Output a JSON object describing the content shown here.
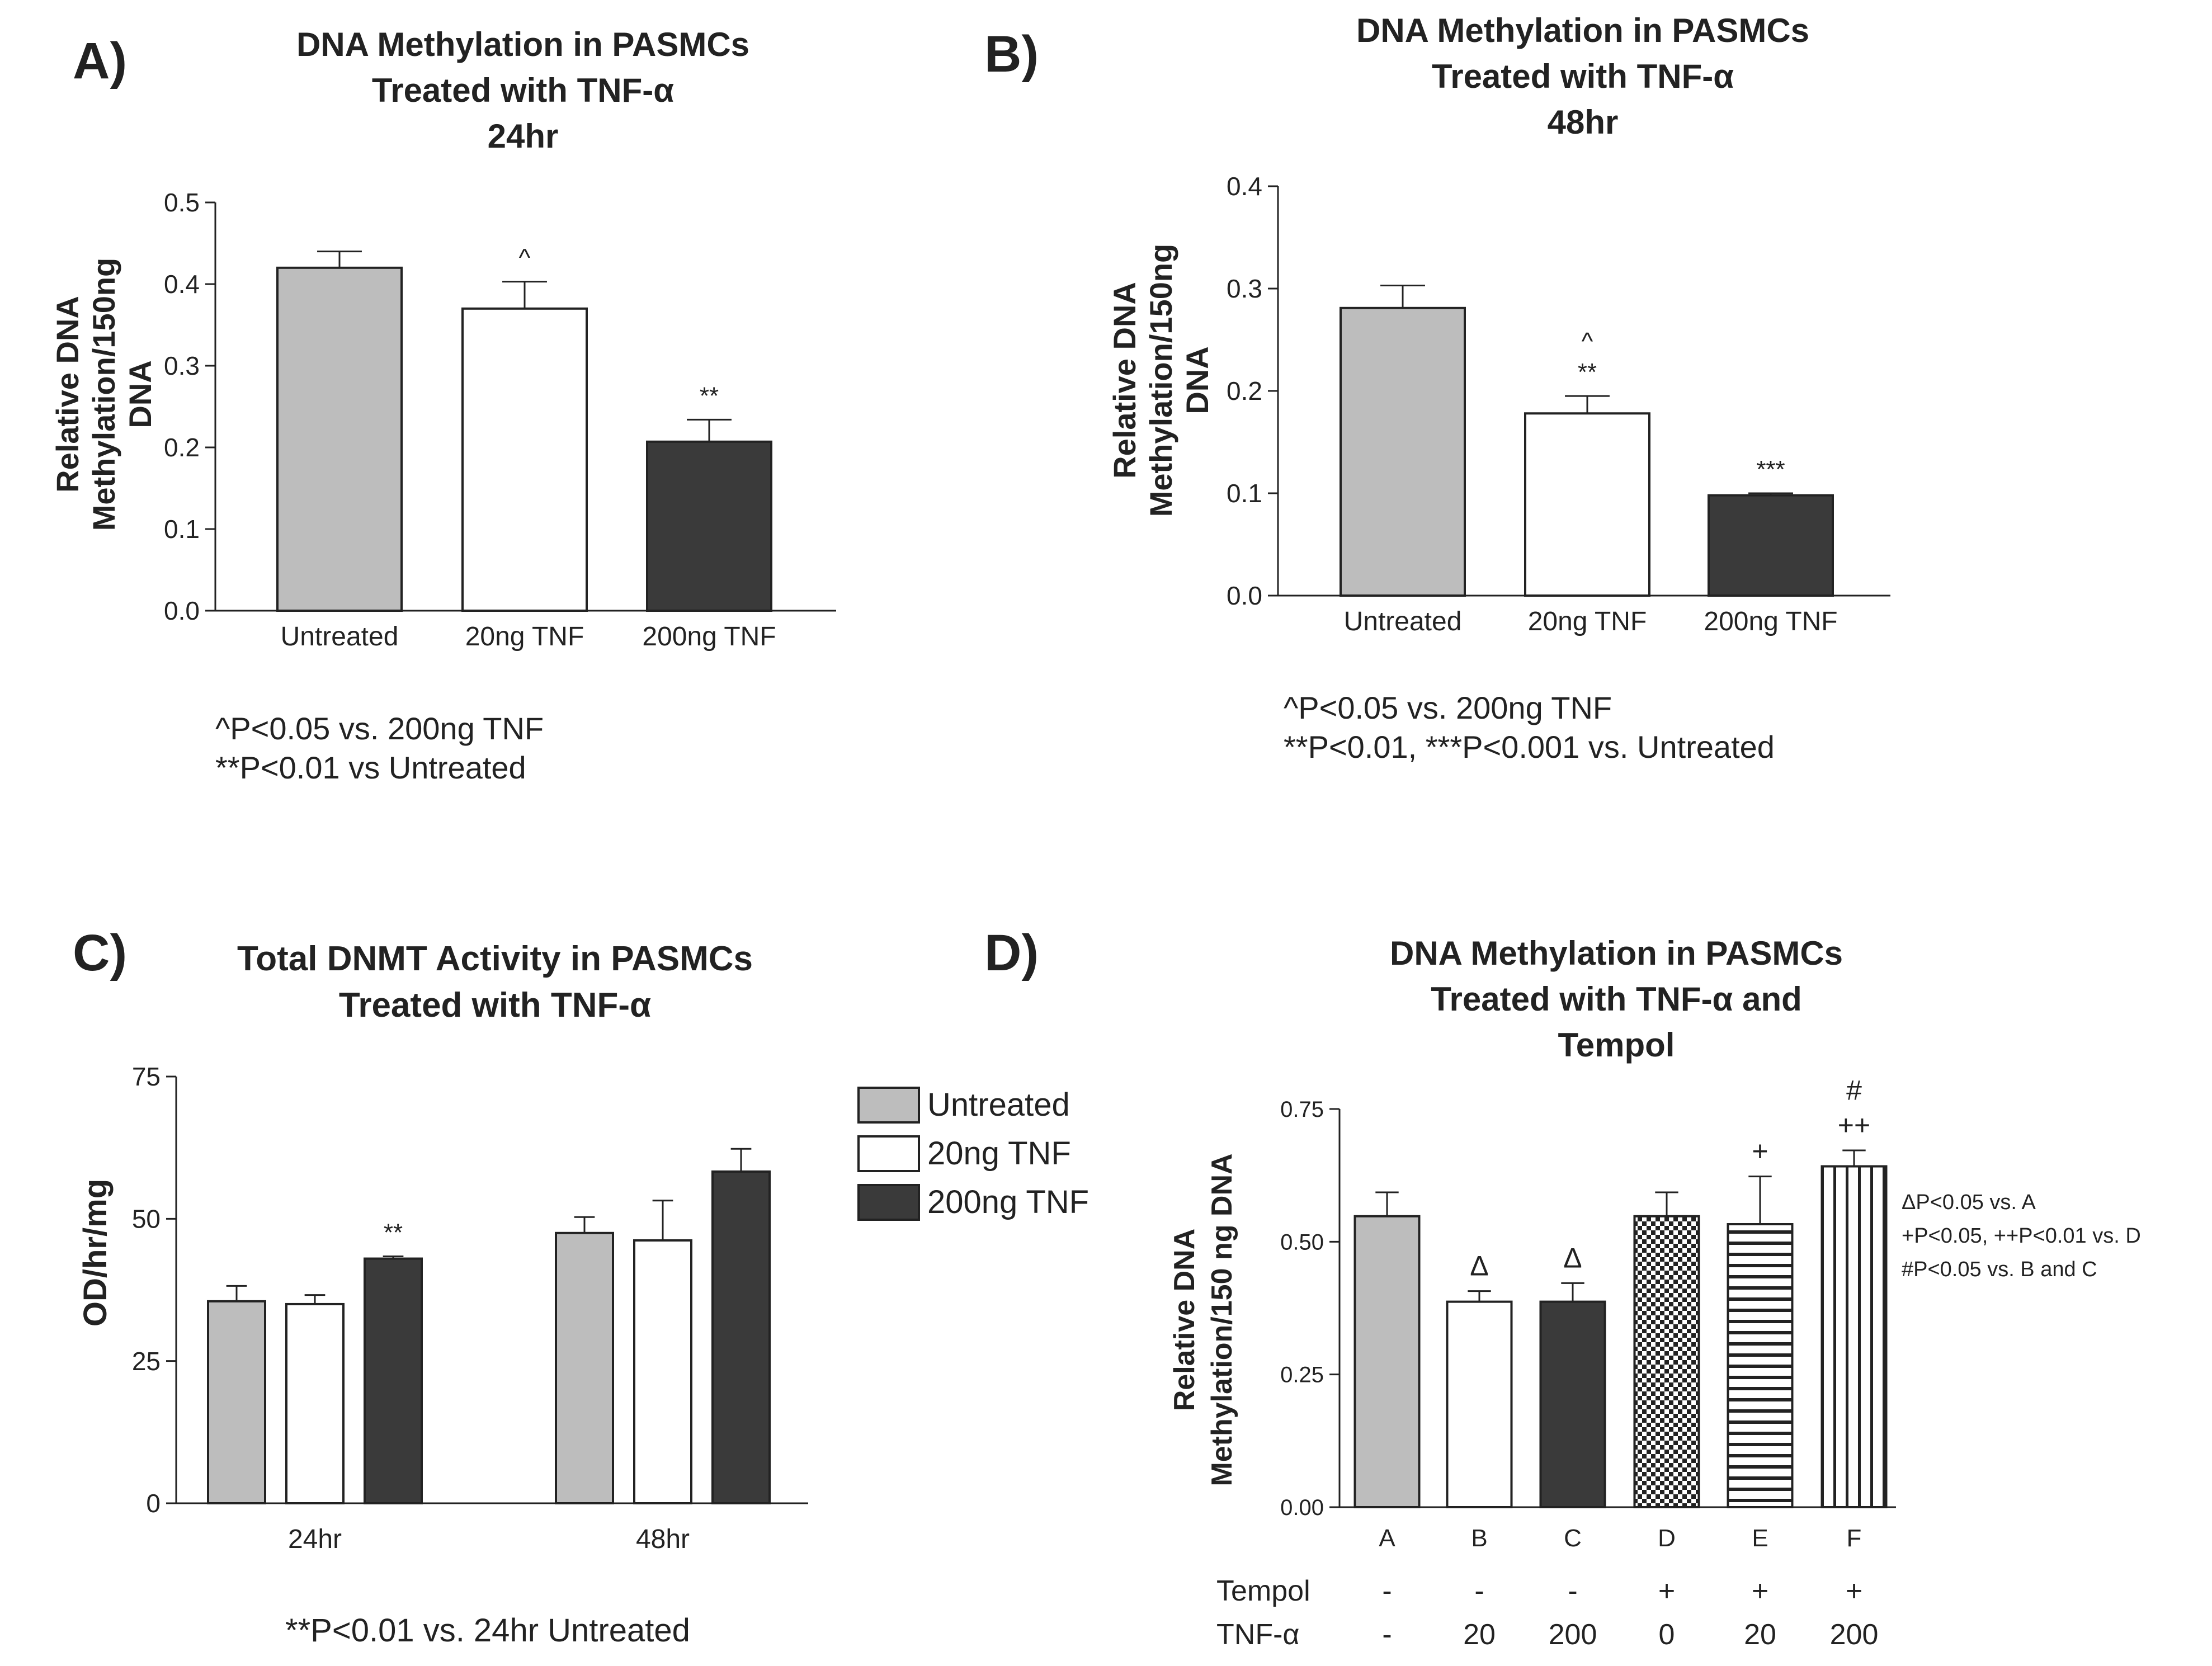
{
  "chart_data": [
    {
      "panel": "A)",
      "type": "bar",
      "title": [
        "DNA Methylation in PASMCs",
        "Treated with TNF-α",
        "24hr"
      ],
      "ylabel": [
        "Relative DNA",
        "Methylation/150ng",
        "DNA"
      ],
      "ylim": [
        0,
        0.5
      ],
      "yticks": [
        "0.0",
        "0.1",
        "0.2",
        "0.3",
        "0.4",
        "0.5"
      ],
      "categories": [
        "Untreated",
        "20ng TNF",
        "200ng TNF"
      ],
      "values": [
        0.42,
        0.37,
        0.207
      ],
      "errors": [
        0.02,
        0.033,
        0.027
      ],
      "annotations": [
        "",
        "^",
        "**"
      ],
      "colors": [
        "#bdbdbd",
        "#ffffff",
        "#3a3a3a"
      ],
      "footnotes": [
        "^P<0.05 vs. 200ng TNF",
        "**P<0.01 vs Untreated"
      ]
    },
    {
      "panel": "B)",
      "type": "bar",
      "title": [
        "DNA Methylation in PASMCs",
        "Treated with TNF-α",
        "48hr"
      ],
      "ylabel": [
        "Relative DNA",
        "Methylation/150ng",
        "DNA"
      ],
      "ylim": [
        0,
        0.4
      ],
      "yticks": [
        "0.0",
        "0.1",
        "0.2",
        "0.3",
        "0.4"
      ],
      "categories": [
        "Untreated",
        "20ng TNF",
        "200ng TNF"
      ],
      "values": [
        0.281,
        0.178,
        0.098
      ],
      "errors": [
        0.022,
        0.017,
        0.002
      ],
      "annotations": [
        "",
        "^\n**",
        "***"
      ],
      "colors": [
        "#bdbdbd",
        "#ffffff",
        "#3a3a3a"
      ],
      "footnotes": [
        "^P<0.05 vs. 200ng TNF",
        "**P<0.01, ***P<0.001 vs. Untreated"
      ]
    },
    {
      "panel": "C)",
      "type": "bar",
      "title": [
        "Total DNMT Activity in PASMCs",
        "Treated with TNF-α"
      ],
      "ylabel": [
        "OD/hr/mg"
      ],
      "ylim": [
        0,
        75
      ],
      "yticks": [
        "0",
        "25",
        "50",
        "75"
      ],
      "categories": [
        "24hr",
        "48hr"
      ],
      "series": [
        {
          "name": "Untreated",
          "values": [
            35.5,
            47.5
          ],
          "errors": [
            2.7,
            2.8
          ],
          "color": "#bdbdbd"
        },
        {
          "name": "20ng TNF",
          "values": [
            35.0,
            46.2
          ],
          "errors": [
            1.6,
            7.0
          ],
          "color": "#ffffff"
        },
        {
          "name": "200ng TNF",
          "values": [
            43.0,
            58.3
          ],
          "errors": [
            0.4,
            4.0
          ],
          "color": "#3a3a3a"
        }
      ],
      "annotations": [
        [
          "",
          "",
          "**"
        ],
        [
          "",
          "",
          ""
        ]
      ],
      "footnotes": [
        "**P<0.01 vs. 24hr Untreated"
      ]
    },
    {
      "panel": "D)",
      "type": "bar",
      "title": [
        "DNA Methylation in PASMCs",
        "Treated with TNF-α and",
        "Tempol"
      ],
      "ylabel": [
        "Relative DNA",
        "Methylation/150 ng DNA"
      ],
      "ylim": [
        0,
        0.75
      ],
      "yticks": [
        "0.00",
        "0.25",
        "0.50",
        "0.75"
      ],
      "categories": [
        "A",
        "B",
        "C",
        "D",
        "E",
        "F"
      ],
      "values": [
        0.548,
        0.387,
        0.387,
        0.548,
        0.533,
        0.642
      ],
      "errors": [
        0.045,
        0.02,
        0.035,
        0.045,
        0.09,
        0.03
      ],
      "patterns": [
        "solid-gray",
        "white",
        "solid-dark",
        "checker",
        "horizontal",
        "vertical"
      ],
      "annotations": [
        "",
        "Δ",
        "Δ",
        "",
        "+",
        "#\n++"
      ],
      "table_labels": [
        "Tempol",
        "TNF-α"
      ],
      "table_rows": [
        [
          "-",
          "-",
          "-",
          "+",
          "+",
          "+"
        ],
        [
          "-",
          "20",
          "200",
          "0",
          "20",
          "200"
        ]
      ],
      "footnotes": [
        "ΔP<0.05 vs. A",
        "+P<0.05, ++P<0.01 vs. D",
        "#P<0.05 vs. B and C"
      ]
    }
  ]
}
